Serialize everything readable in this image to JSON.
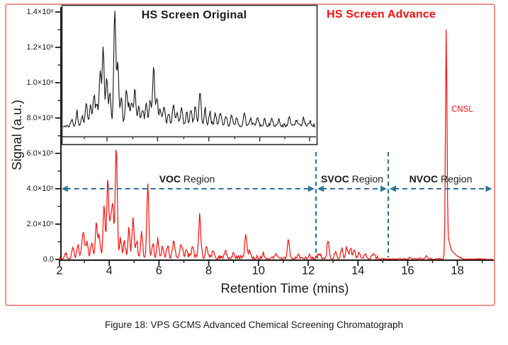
{
  "figure": {
    "caption": "Figure 18: VPS GCMS Advanced Chemical Screening Chromatograph",
    "frame_color": "#f0918d",
    "background": "#ffffff"
  },
  "colors": {
    "trace_red": "#f70d0d",
    "trace_black": "#161616",
    "annotation_blue": "#2e7596",
    "axis_black": "#1c1c1c",
    "text_black": "#1a1a1a"
  },
  "chart_data": {
    "type": "line",
    "title": "HS Screen Advance",
    "title_color": "#f70d0d",
    "inset_title": "HS Screen Original",
    "xlabel": "Retention Time (mins)",
    "ylabel": "Signal (a.u.)",
    "xlim": [
      2,
      19.45
    ],
    "ylim": [
      0,
      1450000
    ],
    "grid": false,
    "legend": "none",
    "x_ticks": {
      "major": [
        2,
        4,
        6,
        8,
        10,
        12,
        14,
        16,
        18
      ],
      "labels": [
        "2",
        "4",
        "6",
        "8",
        "10",
        "12",
        "14",
        "16",
        "18"
      ],
      "minor": [
        3,
        5,
        7,
        9,
        11,
        13,
        15,
        17,
        19
      ]
    },
    "y_ticks": {
      "major_values": [
        0,
        200000,
        400000,
        600000,
        800000,
        1000000,
        1200000,
        1400000
      ],
      "labels": [
        "0.0",
        "2.0×10⁵",
        "4.0×10⁵",
        "6.0×10⁵",
        "8.0×10⁵",
        "1.0×10⁶",
        "1.2×10⁶",
        "1.4×10⁶"
      ],
      "minor_values": [
        100000,
        300000,
        500000,
        700000,
        900000,
        1100000,
        1300000
      ]
    },
    "series": [
      {
        "name": "HS Screen Advance",
        "color": "#f70d0d",
        "units": "signal a.u. vs retention time (mins)",
        "default_peak_width": 0.04,
        "seed": 20,
        "peaks": [
          [
            2.25,
            25000
          ],
          [
            2.54,
            65000
          ],
          [
            2.75,
            50000
          ],
          [
            2.9,
            60000
          ],
          [
            2.97,
            135000
          ],
          [
            3.1,
            80000
          ],
          [
            3.3,
            90000
          ],
          [
            3.48,
            200000
          ],
          [
            3.6,
            110000
          ],
          [
            3.79,
            300000
          ],
          [
            3.94,
            430000
          ],
          [
            4.05,
            180000
          ],
          [
            4.14,
            300000
          ],
          [
            4.28,
            630000
          ],
          [
            4.45,
            100000
          ],
          [
            4.6,
            90000
          ],
          [
            4.79,
            160000
          ],
          [
            4.96,
            220000
          ],
          [
            5.1,
            90000
          ],
          [
            5.3,
            140000
          ],
          [
            5.55,
            400000
          ],
          [
            5.75,
            80000
          ],
          [
            5.95,
            90000
          ],
          [
            6.15,
            60000
          ],
          [
            6.35,
            70000
          ],
          [
            6.6,
            90000
          ],
          [
            6.9,
            70000
          ],
          [
            7.1,
            50000
          ],
          [
            7.35,
            60000
          ],
          [
            7.64,
            235000
          ],
          [
            7.9,
            50000
          ],
          [
            8.2,
            40000
          ],
          [
            8.67,
            45000
          ],
          [
            9.0,
            30000
          ],
          [
            9.49,
            140000
          ],
          [
            9.65,
            45000
          ],
          [
            10.2,
            25000
          ],
          [
            10.7,
            30000
          ],
          [
            11.2,
            110000
          ],
          [
            11.6,
            25000
          ],
          [
            12.05,
            20000
          ],
          [
            12.45,
            25000
          ],
          [
            12.8,
            100000
          ],
          [
            13.1,
            35000
          ],
          [
            13.35,
            45000
          ],
          [
            13.55,
            60000
          ],
          [
            13.7,
            55000
          ],
          [
            13.85,
            50000
          ],
          [
            14.05,
            35000
          ],
          [
            14.3,
            30000
          ],
          [
            14.6,
            20000
          ],
          [
            16.1,
            10000
          ],
          [
            16.75,
            20000
          ],
          [
            17.55,
            1260000,
            0.03
          ],
          [
            17.63,
            90000,
            0.07
          ],
          [
            17.78,
            35000,
            0.1
          ],
          [
            17.98,
            15000,
            0.12
          ]
        ],
        "noise": [
          {
            "from": 2.0,
            "to": 2.5,
            "amp": 20000
          },
          {
            "from": 2.5,
            "to": 8.2,
            "amp": 40000
          },
          {
            "from": 8.2,
            "to": 10.5,
            "amp": 26000
          },
          {
            "from": 10.5,
            "to": 12.3,
            "amp": 18000
          },
          {
            "from": 12.3,
            "to": 14.8,
            "amp": 26000
          },
          {
            "from": 14.8,
            "to": 16.4,
            "amp": 7000
          },
          {
            "from": 16.4,
            "to": 17.35,
            "amp": 9000
          },
          {
            "from": 17.35,
            "to": 19.45,
            "amp": 6000
          }
        ]
      },
      {
        "name": "HS Screen Original (inset)",
        "color": "#161616",
        "units": "relative intensity 0-1 vs fraction of inset width",
        "default_peak_width": 0.004,
        "seed": 77,
        "peaks": [
          [
            0.035,
            0.06
          ],
          [
            0.055,
            0.1
          ],
          [
            0.075,
            0.08
          ],
          [
            0.092,
            0.2
          ],
          [
            0.109,
            0.18
          ],
          [
            0.1225,
            0.26
          ],
          [
            0.134,
            0.17
          ],
          [
            0.147,
            0.46
          ],
          [
            0.159,
            0.68
          ],
          [
            0.173,
            0.42
          ],
          [
            0.186,
            0.28
          ],
          [
            0.205,
            1.0
          ],
          [
            0.217,
            0.55
          ],
          [
            0.231,
            0.25
          ],
          [
            0.251,
            0.31
          ],
          [
            0.262,
            0.15
          ],
          [
            0.273,
            0.2
          ],
          [
            0.285,
            0.31
          ],
          [
            0.3,
            0.18
          ],
          [
            0.315,
            0.14
          ],
          [
            0.33,
            0.2
          ],
          [
            0.345,
            0.22
          ],
          [
            0.359,
            0.52
          ],
          [
            0.372,
            0.24
          ],
          [
            0.385,
            0.14
          ],
          [
            0.4,
            0.17
          ],
          [
            0.418,
            0.11
          ],
          [
            0.437,
            0.17
          ],
          [
            0.452,
            0.12
          ],
          [
            0.47,
            0.16
          ],
          [
            0.49,
            0.11
          ],
          [
            0.507,
            0.14
          ],
          [
            0.525,
            0.17
          ],
          [
            0.543,
            0.3
          ],
          [
            0.563,
            0.14
          ],
          [
            0.582,
            0.11
          ],
          [
            0.604,
            0.1
          ],
          [
            0.624,
            0.12
          ],
          [
            0.646,
            0.08
          ],
          [
            0.668,
            0.1
          ],
          [
            0.688,
            0.07
          ],
          [
            0.719,
            0.12
          ],
          [
            0.744,
            0.06
          ],
          [
            0.771,
            0.08
          ],
          [
            0.799,
            0.05
          ],
          [
            0.827,
            0.07
          ],
          [
            0.855,
            0.05
          ],
          [
            0.897,
            0.08
          ],
          [
            0.925,
            0.04
          ],
          [
            0.953,
            0.06
          ],
          [
            0.98,
            0.03
          ]
        ],
        "noise": [
          {
            "from": 0.0,
            "to": 0.05,
            "amp": 0.025
          },
          {
            "from": 0.05,
            "to": 0.3,
            "amp": 0.06
          },
          {
            "from": 0.3,
            "to": 0.6,
            "amp": 0.05
          },
          {
            "from": 0.6,
            "to": 1.0,
            "amp": 0.035
          }
        ]
      }
    ],
    "inset": {
      "ticks_major": [
        0.178,
        0.376,
        0.577,
        0.777,
        0.972
      ],
      "ticks_minor": [
        0.089,
        0.279,
        0.479,
        0.679,
        0.875
      ]
    },
    "annotations": {
      "peak_label": {
        "text": "CNSL",
        "rt": 17.55,
        "color": "#f70d0d"
      },
      "arrow_level": 400000,
      "arrow_color": "#2e7596",
      "boundaries_rt": [
        12.31,
        15.22
      ],
      "regions": [
        {
          "name": "VOC",
          "suffix": " Region",
          "from": 2.02,
          "to": 12.31
        },
        {
          "name": "SVOC",
          "suffix": " Region",
          "from": 12.31,
          "to": 15.22
        },
        {
          "name": "NVOC",
          "suffix": " Region",
          "from": 15.22,
          "to": 19.45
        }
      ]
    }
  }
}
